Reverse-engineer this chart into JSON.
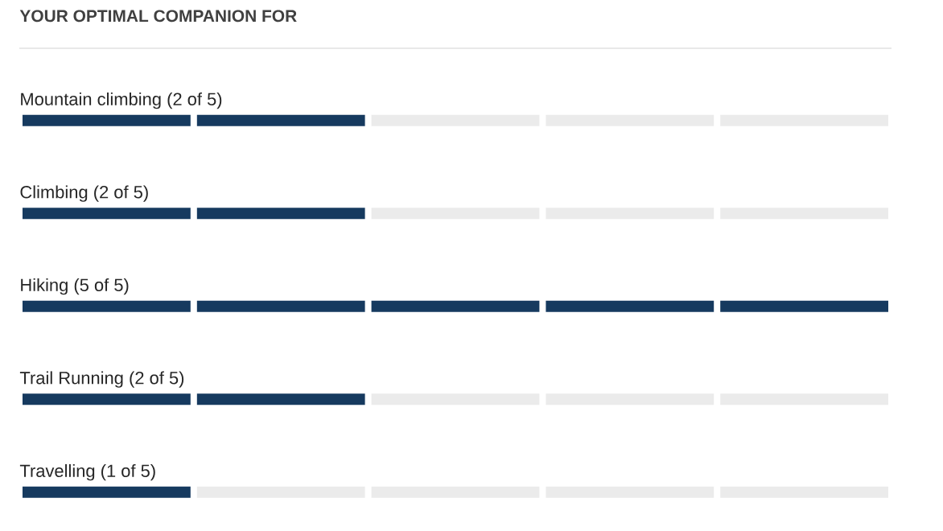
{
  "chart_data": {
    "type": "bar",
    "orientation": "horizontal",
    "stacked": true,
    "title": "YOUR OPTIMAL COMPANION FOR",
    "categories": [
      "Mountain climbing",
      "Climbing",
      "Hiking",
      "Trail Running",
      "Travelling"
    ],
    "series": [
      {
        "color": "#163a5f",
        "values": [
          2,
          2,
          5,
          2,
          1
        ],
        "value_labels": [
          "(2 of 5)",
          "(2 of 5)",
          "(5 of 5)",
          "(2 of 5)",
          "(1 of 5)"
        ]
      },
      {
        "color": "#ebebeb",
        "values": [
          3,
          3,
          0,
          3,
          4
        ]
      }
    ],
    "xlim": [
      0,
      5
    ],
    "grid": "x"
  }
}
